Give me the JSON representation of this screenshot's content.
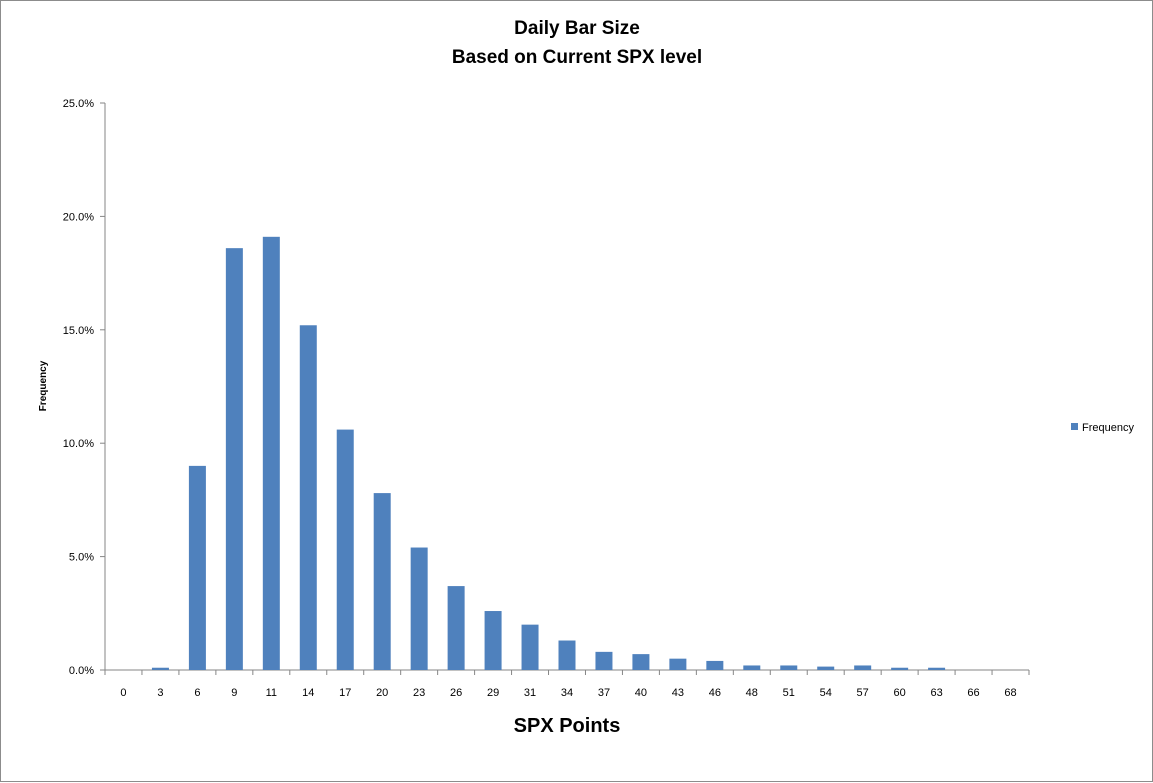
{
  "chart_data": {
    "type": "bar",
    "title": "Daily Bar Size",
    "subtitle": "Based on Current SPX level",
    "xlabel": "SPX Points",
    "ylabel": "Frequency",
    "categories": [
      "0",
      "3",
      "6",
      "9",
      "11",
      "14",
      "17",
      "20",
      "23",
      "26",
      "29",
      "31",
      "34",
      "37",
      "40",
      "43",
      "46",
      "48",
      "51",
      "54",
      "57",
      "60",
      "63",
      "66",
      "68"
    ],
    "series": [
      {
        "name": "Frequency",
        "values": [
          0.0,
          0.1,
          9.0,
          18.6,
          19.1,
          15.2,
          10.6,
          7.8,
          5.4,
          3.7,
          2.6,
          2.0,
          1.3,
          0.8,
          0.7,
          0.5,
          0.4,
          0.2,
          0.2,
          0.15,
          0.2,
          0.1,
          0.1,
          0.0,
          0.0
        ],
        "color": "#4f81bd"
      }
    ],
    "yticks": [
      "0.0%",
      "5.0%",
      "10.0%",
      "15.0%",
      "20.0%",
      "25.0%"
    ],
    "ylim": [
      0,
      25
    ],
    "grid": false,
    "legend_position": "right"
  }
}
